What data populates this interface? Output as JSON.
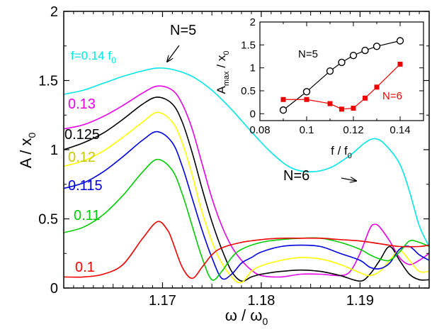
{
  "chart_data": [
    {
      "type": "line",
      "xlabel": "ω / ω",
      "xlabel_sub": "0",
      "ylabel": "A / x",
      "ylabel_sub": "0",
      "xlim": [
        1.16,
        1.197
      ],
      "ylim": [
        0,
        2
      ],
      "xticks": [
        1.17,
        1.18,
        1.19
      ],
      "yticks": [
        0,
        0.5,
        1,
        1.5,
        2
      ],
      "xtick_labels": [
        "1.17",
        "1.18",
        "1.19"
      ],
      "ytick_labels": [
        "0",
        "0.5",
        "1",
        "1.5",
        "2"
      ],
      "grid": false,
      "legend": "none",
      "series": [
        {
          "label": "f=0.14 f",
          "label_sub": "0",
          "color": "#00e5e5",
          "points": [
            [
              1.16,
              1.4
            ],
            [
              1.162,
              1.43
            ],
            [
              1.164,
              1.48
            ],
            [
              1.166,
              1.53
            ],
            [
              1.168,
              1.57
            ],
            [
              1.1695,
              1.59
            ],
            [
              1.171,
              1.58
            ],
            [
              1.173,
              1.53
            ],
            [
              1.175,
              1.43
            ],
            [
              1.177,
              1.29
            ],
            [
              1.179,
              1.13
            ],
            [
              1.181,
              0.98
            ],
            [
              1.183,
              0.87
            ],
            [
              1.185,
              0.84
            ],
            [
              1.187,
              0.87
            ],
            [
              1.189,
              0.96
            ],
            [
              1.1905,
              1.05
            ],
            [
              1.1915,
              1.08
            ],
            [
              1.1925,
              1.04
            ],
            [
              1.194,
              0.9
            ],
            [
              1.195,
              0.7
            ],
            [
              1.196,
              0.45
            ],
            [
              1.197,
              0.3
            ]
          ]
        },
        {
          "label": "0.13",
          "color": "#e600e6",
          "points": [
            [
              1.16,
              1.15
            ],
            [
              1.162,
              1.18
            ],
            [
              1.164,
              1.24
            ],
            [
              1.166,
              1.32
            ],
            [
              1.168,
              1.41
            ],
            [
              1.1695,
              1.46
            ],
            [
              1.171,
              1.43
            ],
            [
              1.172,
              1.33
            ],
            [
              1.173,
              1.15
            ],
            [
              1.174,
              0.9
            ],
            [
              1.175,
              0.65
            ],
            [
              1.176,
              0.45
            ],
            [
              1.177,
              0.3
            ],
            [
              1.178,
              0.2
            ],
            [
              1.179,
              0.13
            ],
            [
              1.18,
              0.09
            ],
            [
              1.182,
              0.08
            ],
            [
              1.184,
              0.1
            ],
            [
              1.186,
              0.1
            ],
            [
              1.188,
              0.09
            ],
            [
              1.189,
              0.12
            ],
            [
              1.19,
              0.25
            ],
            [
              1.191,
              0.43
            ],
            [
              1.1915,
              0.46
            ],
            [
              1.192,
              0.44
            ],
            [
              1.193,
              0.34
            ],
            [
              1.194,
              0.22
            ],
            [
              1.195,
              0.17
            ],
            [
              1.196,
              0.2
            ],
            [
              1.197,
              0.25
            ]
          ]
        },
        {
          "label": "0.125",
          "color": "#000000",
          "points": [
            [
              1.16,
              1.0
            ],
            [
              1.162,
              1.05
            ],
            [
              1.164,
              1.12
            ],
            [
              1.166,
              1.22
            ],
            [
              1.168,
              1.33
            ],
            [
              1.1695,
              1.38
            ],
            [
              1.171,
              1.33
            ],
            [
              1.172,
              1.2
            ],
            [
              1.173,
              0.98
            ],
            [
              1.174,
              0.72
            ],
            [
              1.175,
              0.48
            ],
            [
              1.176,
              0.28
            ],
            [
              1.177,
              0.12
            ],
            [
              1.178,
              0.05
            ],
            [
              1.179,
              0.08
            ],
            [
              1.18,
              0.1
            ],
            [
              1.182,
              0.12
            ],
            [
              1.184,
              0.13
            ],
            [
              1.186,
              0.12
            ],
            [
              1.188,
              0.09
            ],
            [
              1.19,
              0.05
            ],
            [
              1.191,
              0.1
            ],
            [
              1.192,
              0.2
            ],
            [
              1.193,
              0.3
            ],
            [
              1.194,
              0.2
            ],
            [
              1.195,
              0.1
            ],
            [
              1.196,
              0.06
            ],
            [
              1.197,
              0.06
            ]
          ]
        },
        {
          "label": "0.12",
          "color": "#ffff00",
          "points": [
            [
              1.16,
              0.88
            ],
            [
              1.162,
              0.92
            ],
            [
              1.164,
              0.99
            ],
            [
              1.166,
              1.09
            ],
            [
              1.168,
              1.2
            ],
            [
              1.1695,
              1.27
            ],
            [
              1.171,
              1.2
            ],
            [
              1.172,
              1.05
            ],
            [
              1.173,
              0.82
            ],
            [
              1.174,
              0.55
            ],
            [
              1.1755,
              0.25
            ],
            [
              1.177,
              0.08
            ],
            [
              1.178,
              0.04
            ],
            [
              1.179,
              0.12
            ],
            [
              1.18,
              0.16
            ],
            [
              1.182,
              0.2
            ],
            [
              1.184,
              0.22
            ],
            [
              1.186,
              0.21
            ],
            [
              1.188,
              0.17
            ],
            [
              1.19,
              0.11
            ],
            [
              1.191,
              0.09
            ],
            [
              1.192,
              0.12
            ],
            [
              1.193,
              0.2
            ],
            [
              1.194,
              0.27
            ],
            [
              1.195,
              0.2
            ],
            [
              1.196,
              0.12
            ],
            [
              1.197,
              0.12
            ]
          ]
        },
        {
          "label": "0.115",
          "color": "#0000dd",
          "points": [
            [
              1.16,
              0.72
            ],
            [
              1.162,
              0.76
            ],
            [
              1.164,
              0.84
            ],
            [
              1.166,
              0.95
            ],
            [
              1.168,
              1.07
            ],
            [
              1.1695,
              1.13
            ],
            [
              1.171,
              1.05
            ],
            [
              1.172,
              0.88
            ],
            [
              1.173,
              0.65
            ],
            [
              1.174,
              0.42
            ],
            [
              1.175,
              0.22
            ],
            [
              1.176,
              0.07
            ],
            [
              1.177,
              0.1
            ],
            [
              1.178,
              0.18
            ],
            [
              1.179,
              0.22
            ],
            [
              1.18,
              0.26
            ],
            [
              1.182,
              0.3
            ],
            [
              1.184,
              0.31
            ],
            [
              1.186,
              0.3
            ],
            [
              1.188,
              0.25
            ],
            [
              1.19,
              0.2
            ],
            [
              1.191,
              0.15
            ],
            [
              1.192,
              0.14
            ],
            [
              1.193,
              0.18
            ],
            [
              1.194,
              0.28
            ],
            [
              1.195,
              0.3
            ],
            [
              1.196,
              0.24
            ],
            [
              1.197,
              0.2
            ]
          ]
        },
        {
          "label": "0.11",
          "color": "#00cc00",
          "points": [
            [
              1.16,
              0.4
            ],
            [
              1.162,
              0.44
            ],
            [
              1.164,
              0.53
            ],
            [
              1.166,
              0.67
            ],
            [
              1.168,
              0.84
            ],
            [
              1.1695,
              0.93
            ],
            [
              1.171,
              0.85
            ],
            [
              1.172,
              0.68
            ],
            [
              1.173,
              0.45
            ],
            [
              1.174,
              0.22
            ],
            [
              1.175,
              0.06
            ],
            [
              1.176,
              0.12
            ],
            [
              1.177,
              0.22
            ],
            [
              1.178,
              0.28
            ],
            [
              1.18,
              0.33
            ],
            [
              1.182,
              0.35
            ],
            [
              1.184,
              0.36
            ],
            [
              1.186,
              0.36
            ],
            [
              1.188,
              0.33
            ],
            [
              1.19,
              0.28
            ],
            [
              1.191,
              0.24
            ],
            [
              1.192,
              0.21
            ],
            [
              1.193,
              0.2
            ],
            [
              1.194,
              0.26
            ],
            [
              1.195,
              0.34
            ],
            [
              1.196,
              0.33
            ],
            [
              1.197,
              0.3
            ]
          ]
        },
        {
          "label": "0.1",
          "color": "#ee0000",
          "points": [
            [
              1.16,
              0.08
            ],
            [
              1.162,
              0.08
            ],
            [
              1.164,
              0.1
            ],
            [
              1.166,
              0.17
            ],
            [
              1.168,
              0.36
            ],
            [
              1.1695,
              0.48
            ],
            [
              1.1705,
              0.42
            ],
            [
              1.171,
              0.34
            ],
            [
              1.172,
              0.15
            ],
            [
              1.173,
              0.07
            ],
            [
              1.174,
              0.15
            ],
            [
              1.175,
              0.24
            ],
            [
              1.176,
              0.29
            ],
            [
              1.178,
              0.33
            ],
            [
              1.18,
              0.35
            ],
            [
              1.182,
              0.36
            ],
            [
              1.184,
              0.36
            ],
            [
              1.186,
              0.36
            ],
            [
              1.188,
              0.35
            ],
            [
              1.19,
              0.34
            ],
            [
              1.192,
              0.32
            ],
            [
              1.194,
              0.3
            ],
            [
              1.196,
              0.3
            ],
            [
              1.197,
              0.31
            ]
          ]
        }
      ],
      "annotations": [
        {
          "text": "N=5"
        },
        {
          "text": "N=6"
        }
      ]
    },
    {
      "type": "line",
      "xlabel": "f / f",
      "xlabel_sub": "0",
      "ylabel": "A",
      "ylabel_sub": "max",
      "ylabel_rest": " / x",
      "ylabel_sub2": "0",
      "xlim": [
        0.08,
        0.15
      ],
      "ylim": [
        -0.15,
        2
      ],
      "xticks": [
        0.08,
        0.1,
        0.12,
        0.14
      ],
      "yticks": [
        0,
        0.5,
        1,
        1.5,
        2
      ],
      "xtick_labels": [
        "0.08",
        "0.1",
        "0.12",
        "0.14"
      ],
      "ytick_labels": [
        "0",
        "0.5",
        "1",
        "1.5",
        "2"
      ],
      "series": [
        {
          "name": "N=5",
          "color": "#000000",
          "marker": "open-circle",
          "x": [
            0.09,
            0.1,
            0.11,
            0.115,
            0.12,
            0.125,
            0.13,
            0.14
          ],
          "y": [
            0.08,
            0.48,
            0.93,
            1.12,
            1.27,
            1.38,
            1.47,
            1.59
          ]
        },
        {
          "name": "N=6",
          "color": "#ee0000",
          "marker": "filled-square",
          "x": [
            0.09,
            0.1,
            0.11,
            0.115,
            0.12,
            0.125,
            0.13,
            0.14
          ],
          "y": [
            0.31,
            0.31,
            0.22,
            0.1,
            0.12,
            0.34,
            0.58,
            1.08
          ]
        }
      ]
    }
  ]
}
